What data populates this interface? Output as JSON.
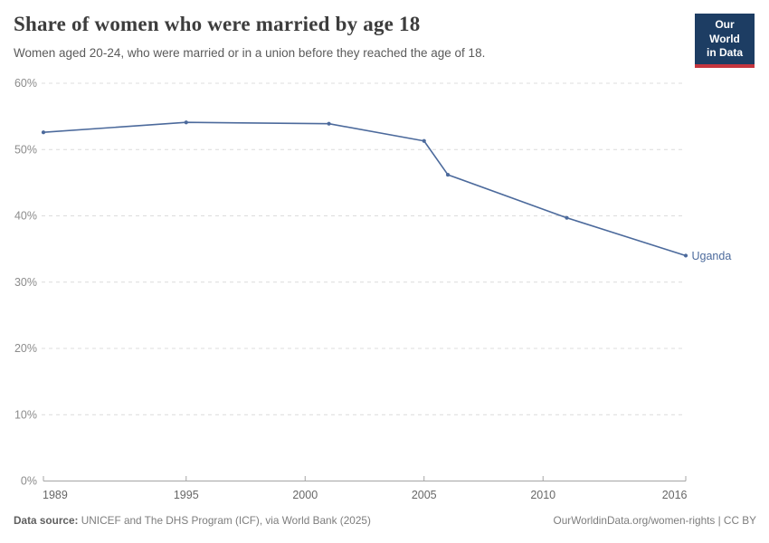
{
  "header": {
    "title": "Share of women who were married by age 18",
    "subtitle": "Women aged 20-24, who were married or in a union before they reached the age of 18.",
    "logo_line1": "Our World",
    "logo_line2": "in Data"
  },
  "chart_data": {
    "type": "line",
    "title": "Share of women who were married by age 18",
    "subtitle": "Women aged 20-24, who were married or in a union before they reached the age of 18.",
    "x": [
      1989,
      1995,
      2001,
      2005,
      2006,
      2011,
      2016
    ],
    "series": [
      {
        "name": "Uganda",
        "values": [
          52.6,
          54.1,
          53.9,
          51.3,
          46.2,
          39.7,
          34.0
        ]
      }
    ],
    "xlim": [
      1989,
      2016
    ],
    "ylim": [
      0,
      60
    ],
    "x_ticks": [
      1989,
      1995,
      2000,
      2005,
      2010,
      2016
    ],
    "y_ticks": [
      0,
      10,
      20,
      30,
      40,
      50,
      60
    ],
    "y_tick_suffix": "%",
    "grid": true,
    "legend_position": "end-of-line-label",
    "end_label": "Uganda"
  },
  "footer": {
    "datasource_label": "Data source:",
    "datasource_text": "UNICEF and The DHS Program (ICF), via World Bank (2025)",
    "link": "OurWorldinData.org/women-rights | CC BY"
  },
  "colors": {
    "line": "#4C6A9C",
    "logo_bg": "#1d3d63",
    "logo_red": "#c5353e",
    "grid": "#dcdcdc",
    "axis": "#a5a5a5",
    "y_tick_label": "#8c8c8c",
    "x_tick_label": "#676767",
    "title_text": "#3d3d3d",
    "subtitle_text": "#5a5a5a"
  }
}
